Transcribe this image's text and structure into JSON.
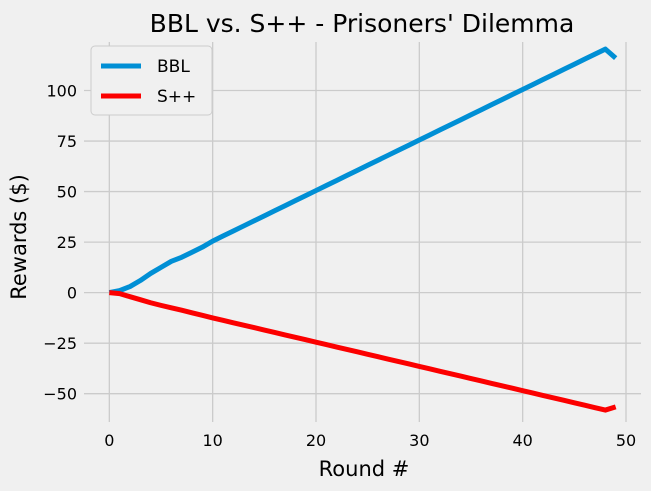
{
  "chart_data": {
    "type": "line",
    "title": "BBL vs. S++ - Prisoners' Dilemma",
    "xlabel": "Round #",
    "ylabel": "Rewards ($)",
    "xlim": [
      -2.45,
      51.45
    ],
    "ylim": [
      -64.0,
      124.0
    ],
    "xticks": [
      0,
      10,
      20,
      30,
      40,
      50
    ],
    "yticks": [
      -50,
      -25,
      0,
      25,
      50,
      75,
      100
    ],
    "xtick_labels": [
      "0",
      "10",
      "20",
      "30",
      "40",
      "50"
    ],
    "ytick_labels": [
      "−50",
      "−25",
      "0",
      "25",
      "50",
      "75",
      "100"
    ],
    "grid": true,
    "legend_position": "top-left",
    "x": [
      0,
      1,
      2,
      3,
      4,
      5,
      6,
      7,
      8,
      9,
      10,
      11,
      12,
      13,
      14,
      15,
      16,
      17,
      18,
      19,
      20,
      21,
      22,
      23,
      24,
      25,
      26,
      27,
      28,
      29,
      30,
      31,
      32,
      33,
      34,
      35,
      36,
      37,
      38,
      39,
      40,
      41,
      42,
      43,
      44,
      45,
      46,
      47,
      48,
      49
    ],
    "series": [
      {
        "name": "BBL",
        "color": "#008fd5",
        "values": [
          0,
          1,
          3,
          6,
          9.5,
          12.5,
          15.5,
          17.5,
          20,
          22.5,
          25.5,
          28,
          30.5,
          33,
          35.5,
          38,
          40.5,
          43,
          45.5,
          48,
          50.5,
          53,
          55.5,
          58,
          60.5,
          63,
          65.5,
          68,
          70.5,
          73,
          75.5,
          78,
          80.5,
          83,
          85.5,
          88,
          90.5,
          93,
          95.5,
          98,
          100.5,
          103,
          105.5,
          108,
          110.5,
          113,
          115.5,
          118,
          120.5,
          116
        ]
      },
      {
        "name": "S++",
        "color": "#fc0000",
        "values": [
          0,
          -0.5,
          -2,
          -3.5,
          -5,
          -6.3,
          -7.5,
          -8.7,
          -10,
          -11.2,
          -12.5,
          -13.7,
          -14.9,
          -16.1,
          -17.3,
          -18.5,
          -19.7,
          -20.9,
          -22.1,
          -23.3,
          -24.5,
          -25.7,
          -26.9,
          -28.1,
          -29.3,
          -30.5,
          -31.7,
          -32.9,
          -34.1,
          -35.3,
          -36.5,
          -37.7,
          -38.9,
          -40.1,
          -41.3,
          -42.5,
          -43.7,
          -44.9,
          -46.1,
          -47.3,
          -48.5,
          -49.7,
          -50.9,
          -52.1,
          -53.3,
          -54.5,
          -55.7,
          -56.9,
          -58.1,
          -56.5
        ]
      }
    ]
  }
}
